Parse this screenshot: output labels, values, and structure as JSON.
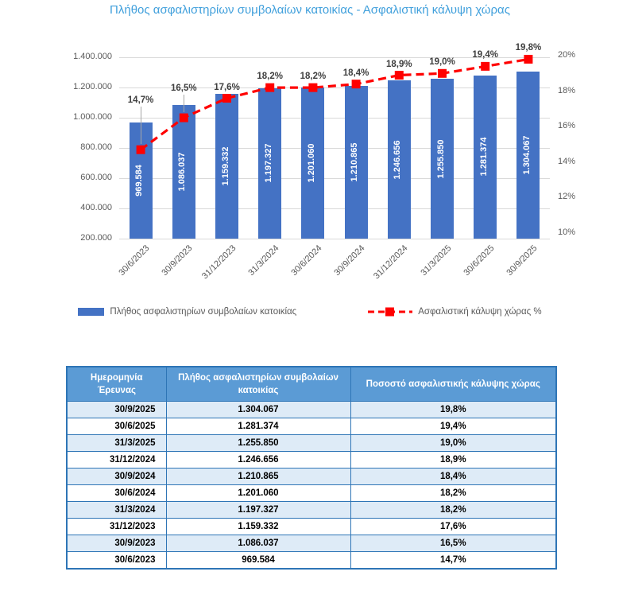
{
  "title": "Πλήθος ασφαλιστηρίων συμβολαίων κατοικίας - Ασφαλιστική κάλυψη χώρας",
  "chart_data": {
    "type": "bar",
    "categories": [
      "30/6/2023",
      "30/9/2023",
      "31/12/2023",
      "31/3/2024",
      "30/6/2024",
      "30/9/2024",
      "31/12/2024",
      "31/3/2025",
      "30/6/2025",
      "30/9/2025"
    ],
    "series": [
      {
        "name": "Πλήθος ασφαλιστηρίων συμβολαίων κατοικίας",
        "type": "bar",
        "axis": "left",
        "values": [
          969584,
          1086037,
          1159332,
          1197327,
          1201060,
          1210865,
          1246656,
          1255850,
          1281374,
          1304067
        ],
        "labels": [
          "969.584",
          "1.086.037",
          "1.159.332",
          "1.197.327",
          "1.201.060",
          "1.210.865",
          "1.246.656",
          "1.255.850",
          "1.281.374",
          "1.304.067"
        ]
      },
      {
        "name": "Ασφαλιστική κάλυψη χώρας %",
        "type": "line",
        "axis": "right",
        "values": [
          14.7,
          16.5,
          17.6,
          18.2,
          18.2,
          18.4,
          18.9,
          19.0,
          19.4,
          19.8
        ],
        "labels": [
          "14,7%",
          "16,5%",
          "17,6%",
          "18,2%",
          "18,2%",
          "18,4%",
          "18,9%",
          "19,0%",
          "19,4%",
          "19,8%"
        ]
      }
    ],
    "left_axis": {
      "min": 200000,
      "max": 1400000,
      "step": 200000,
      "ticks": [
        "1.400.000",
        "1.200.000",
        "1.000.000",
        "800.000",
        "600.000",
        "400.000",
        "200.000"
      ]
    },
    "right_axis": {
      "min": 10,
      "max": 20,
      "step": 2,
      "ticks": [
        "20%",
        "18%",
        "16%",
        "14%",
        "12%",
        "10%"
      ]
    },
    "grid": true,
    "legend_position": "bottom"
  },
  "colors": {
    "bar": "#4472C4",
    "line": "#FF0000",
    "title": "#41A0DC",
    "table_header_bg": "#5B9BD5",
    "table_row_alt": "#DEEBF7",
    "table_border": "#2E75B6"
  },
  "table": {
    "headers": [
      "Ημερομηνία Έρευνας",
      "Πλήθος ασφαλιστηρίων συμβολαίων κατοικίας",
      "Ποσοστό ασφαλιστικής κάλυψης χώρας"
    ],
    "rows": [
      [
        "30/9/2025",
        "1.304.067",
        "19,8%"
      ],
      [
        "30/6/2025",
        "1.281.374",
        "19,4%"
      ],
      [
        "31/3/2025",
        "1.255.850",
        "19,0%"
      ],
      [
        "31/12/2024",
        "1.246.656",
        "18,9%"
      ],
      [
        "30/9/2024",
        "1.210.865",
        "18,4%"
      ],
      [
        "30/6/2024",
        "1.201.060",
        "18,2%"
      ],
      [
        "31/3/2024",
        "1.197.327",
        "18,2%"
      ],
      [
        "31/12/2023",
        "1.159.332",
        "17,6%"
      ],
      [
        "30/9/2023",
        "1.086.037",
        "16,5%"
      ],
      [
        "30/6/2023",
        "969.584",
        "14,7%"
      ]
    ]
  }
}
